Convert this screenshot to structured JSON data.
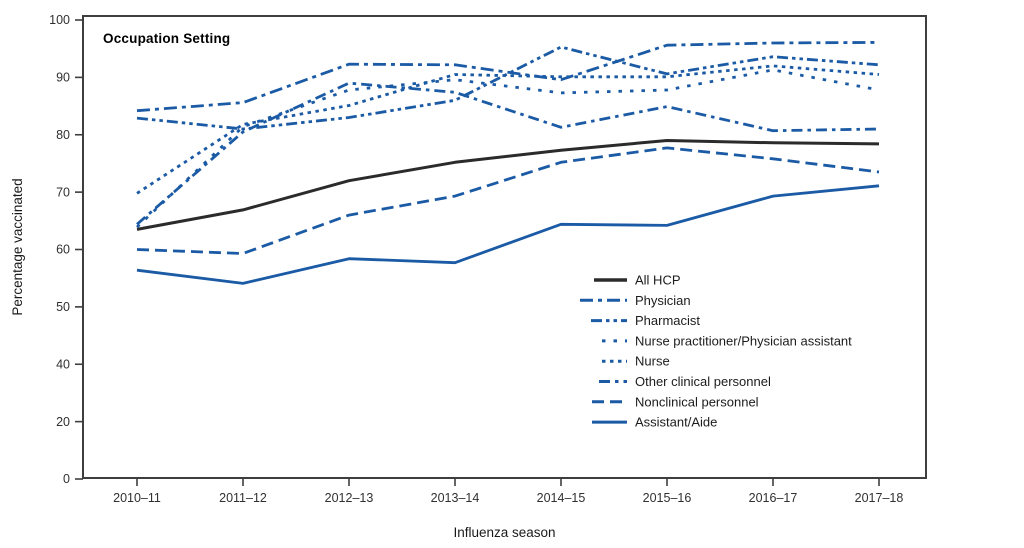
{
  "figure": {
    "panel_title": "Occupation Setting",
    "x_axis_label": "Influenza season",
    "y_axis_label": "Percentage vaccinated"
  },
  "chart_data": {
    "type": "line",
    "title": "Occupation Setting",
    "xlabel": "Influenza season",
    "ylabel": "Percentage vaccinated",
    "x_categories": [
      "2010–11",
      "2011–12",
      "2012–13",
      "2013–14",
      "2014–15",
      "2015–16",
      "2016–17",
      "2017–18"
    ],
    "y_ticks": [
      100,
      90,
      80,
      70,
      60,
      50,
      40,
      20,
      0
    ],
    "ylim": [
      0,
      100
    ],
    "y_axis_note": "tick spacing uniform; steps of 10 from 40-100 and steps of 20 from 0-40 (compressed lower axis)",
    "grid": false,
    "legend_position": "inside-lower-right",
    "colors": {
      "black_line": "#2b2b2b",
      "blue_line": "#1b5aa5",
      "axis": "#3e3e3e",
      "tick_text": "#303030"
    },
    "series": [
      {
        "name": "All HCP",
        "style": "solid",
        "color": "black",
        "values": [
          63.5,
          66.9,
          72.0,
          75.2,
          77.3,
          79.0,
          78.6,
          78.4
        ]
      },
      {
        "name": "Physician",
        "style": "dash-dash-dot",
        "color": "blue",
        "values": [
          84.2,
          85.6,
          92.3,
          92.2,
          89.6,
          95.6,
          96.0,
          96.1
        ]
      },
      {
        "name": "Pharmacist",
        "style": "dash-dot-dot",
        "color": "blue",
        "values": [
          82.9,
          81.0,
          83.0,
          86.0,
          95.3,
          90.6,
          93.6,
          92.2
        ]
      },
      {
        "name": "Nurse practitioner/Physician assistant",
        "style": "sparse-dots",
        "color": "blue",
        "values": [
          63.9,
          81.4,
          87.8,
          89.6,
          87.3,
          87.8,
          91.3,
          87.8
        ]
      },
      {
        "name": "Nurse",
        "style": "dense-dots",
        "color": "blue",
        "values": [
          69.8,
          81.8,
          85.1,
          90.5,
          90.1,
          90.1,
          92.0,
          90.5
        ]
      },
      {
        "name": "Other clinical personnel",
        "style": "dash-dot",
        "color": "blue",
        "values": [
          64.4,
          80.5,
          89.0,
          87.4,
          81.3,
          84.9,
          80.7,
          81.0
        ]
      },
      {
        "name": "Nonclinical personnel",
        "style": "medium-dash",
        "color": "blue",
        "values": [
          60.0,
          59.3,
          66.0,
          69.3,
          75.2,
          77.7,
          75.8,
          73.5
        ]
      },
      {
        "name": "Assistant/Aide",
        "style": "solid",
        "color": "blue",
        "values": [
          56.4,
          54.1,
          58.4,
          57.7,
          64.4,
          64.2,
          69.3,
          71.1
        ]
      }
    ]
  }
}
